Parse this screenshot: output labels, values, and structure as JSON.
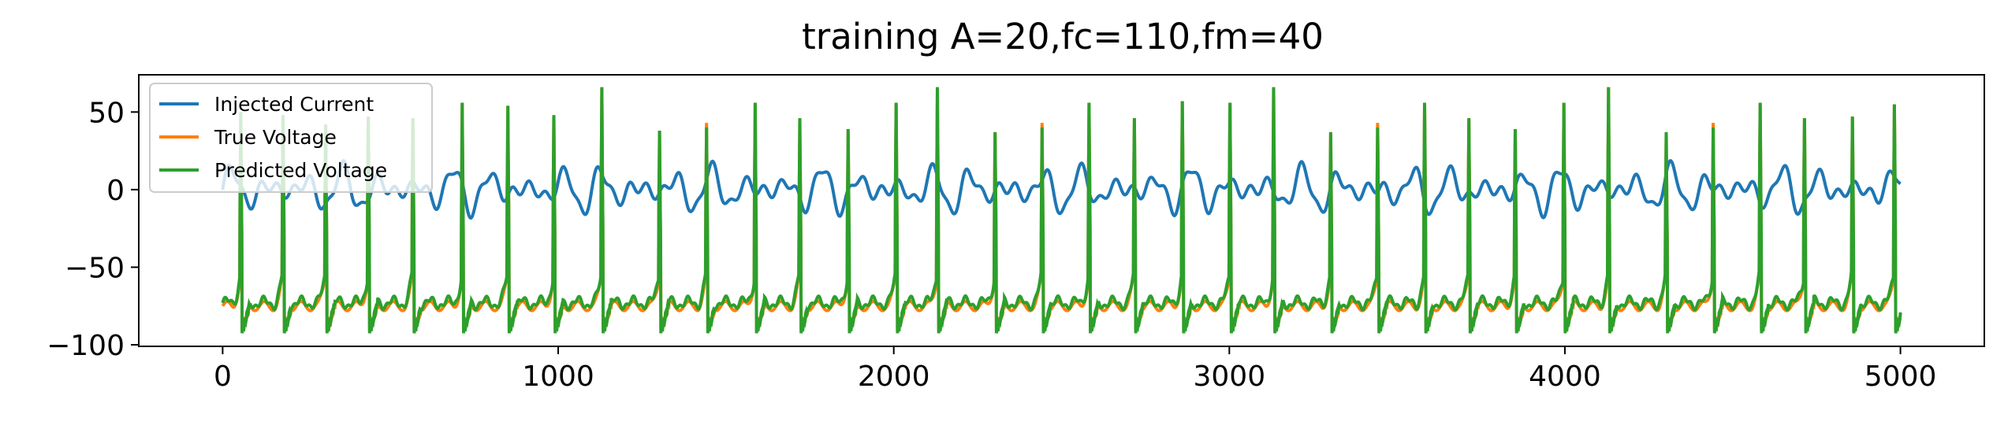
{
  "chart_data": {
    "type": "line",
    "title": "training A=20,fc=110,fm=40",
    "xlabel": "",
    "ylabel": "",
    "xlim": [
      -250,
      5250
    ],
    "ylim": [
      -101,
      74
    ],
    "xticks": [
      0,
      1000,
      2000,
      3000,
      4000,
      5000
    ],
    "xtick_labels": [
      "0",
      "1000",
      "2000",
      "3000",
      "4000",
      "5000"
    ],
    "yticks": [
      -100,
      -50,
      0,
      50
    ],
    "ytick_labels": [
      "−100",
      "−50",
      "0",
      "50"
    ],
    "grid": false,
    "legend_position": "upper left",
    "series": [
      {
        "name": "Injected Current",
        "color": "#1f77b4",
        "description_of_form": "amplitude-modulated sinusoid",
        "amplitude": 20,
        "carrier_period": 110,
        "modulation_period": 40,
        "x_range": [
          0,
          5000
        ]
      },
      {
        "name": "True Voltage",
        "color": "#ff7f0e",
        "spike_times": [
          52,
          178,
          305,
          432,
          565,
          712,
          848,
          985,
          1128,
          1300,
          1440,
          1585,
          1718,
          1862,
          2005,
          2128,
          2300,
          2440,
          2580,
          2715,
          2858,
          3000,
          3130,
          3300,
          3440,
          3580,
          3712,
          3850,
          3995,
          4128,
          4300,
          4440,
          4580,
          4712,
          4855,
          4980
        ],
        "spike_peaks": [
          50,
          48,
          42,
          47,
          46,
          56,
          54,
          48,
          66,
          38,
          43,
          56,
          46,
          39,
          56,
          66,
          37,
          43,
          56,
          46,
          57,
          56,
          66,
          37,
          43,
          56,
          46,
          39,
          56,
          66,
          37,
          43,
          56,
          46,
          47,
          55
        ],
        "resting_level": -75,
        "trough_level": -90,
        "x_range": [
          0,
          5000
        ]
      },
      {
        "name": "Predicted Voltage",
        "color": "#2ca02c",
        "spike_times": [
          52,
          178,
          305,
          432,
          565,
          712,
          848,
          985,
          1128,
          1300,
          1440,
          1585,
          1718,
          1862,
          2005,
          2128,
          2300,
          2440,
          2580,
          2715,
          2858,
          3000,
          3130,
          3300,
          3440,
          3580,
          3712,
          3850,
          3995,
          4128,
          4300,
          4440,
          4580,
          4712,
          4855,
          4980
        ],
        "spike_peaks": [
          50,
          48,
          42,
          47,
          46,
          56,
          54,
          48,
          66,
          38,
          40,
          56,
          46,
          39,
          56,
          66,
          37,
          40,
          56,
          46,
          57,
          56,
          66,
          37,
          40,
          56,
          46,
          39,
          56,
          66,
          37,
          40,
          56,
          46,
          47,
          55
        ],
        "resting_level": -73,
        "trough_level": -92,
        "x_range": [
          0,
          5000
        ]
      }
    ]
  }
}
